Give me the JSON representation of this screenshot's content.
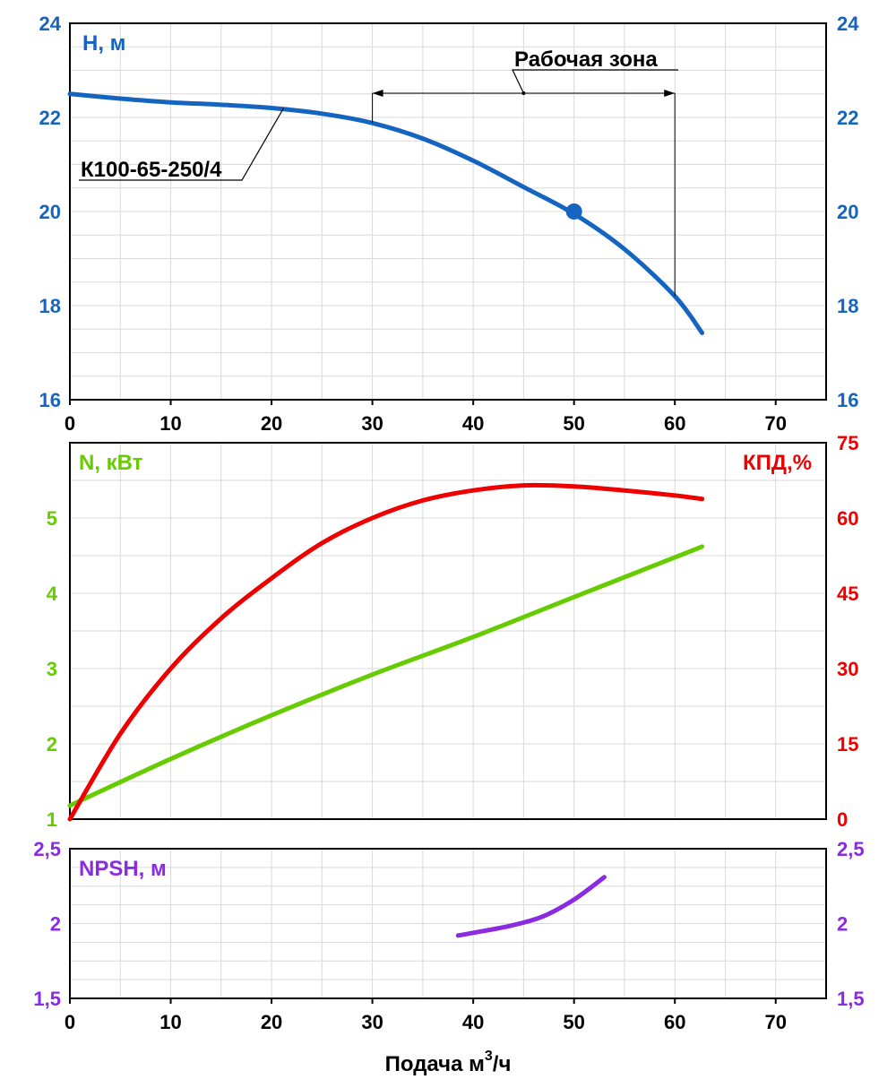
{
  "x_axis_label": "Подача м",
  "x_axis_label_sup": "3",
  "x_axis_label_tail": "/ч",
  "chart_data": [
    {
      "type": "line",
      "name": "head",
      "ylabel": "Н, м",
      "ylabel_color": "#1565C0",
      "xlim": [
        0,
        75
      ],
      "ylim": [
        16,
        24
      ],
      "x_ticks": [
        "0",
        "10",
        "20",
        "30",
        "40",
        "50",
        "60",
        "70"
      ],
      "y_ticks": [
        "16",
        "18",
        "20",
        "22",
        "24"
      ],
      "series": [
        {
          "name": "К100-65-250/4",
          "color": "#1565C0",
          "x": [
            0,
            5,
            10,
            15,
            20,
            25,
            30,
            35,
            40,
            45,
            50,
            55,
            60,
            62.7
          ],
          "y": [
            22.5,
            22.4,
            22.32,
            22.27,
            22.2,
            22.08,
            21.88,
            21.55,
            21.08,
            20.52,
            19.95,
            19.2,
            18.2,
            17.42
          ]
        }
      ],
      "duty_point": {
        "x": 50,
        "y": 20
      },
      "annotations": [
        {
          "text": "К100-65-250/4"
        },
        {
          "text": "Рабочая зона",
          "x_range": [
            30,
            60
          ]
        }
      ]
    },
    {
      "type": "line",
      "name": "power-efficiency",
      "ylabel": "N, кВт",
      "ylabel_color": "#66CC00",
      "y2label": "КПД,%",
      "y2label_color": "#EE0000",
      "xlim": [
        0,
        75
      ],
      "ylim": [
        1,
        6
      ],
      "y2lim": [
        0,
        75
      ],
      "y_ticks": [
        "1",
        "2",
        "3",
        "4",
        "5"
      ],
      "y2_ticks": [
        "0",
        "15",
        "30",
        "45",
        "60",
        "75"
      ],
      "series": [
        {
          "name": "N",
          "color": "#66CC00",
          "axis": "left",
          "x": [
            0,
            10,
            20,
            30,
            40,
            50,
            62.7
          ],
          "y": [
            1.18,
            1.8,
            2.38,
            2.92,
            3.42,
            3.95,
            4.62
          ]
        },
        {
          "name": "КПД",
          "color": "#EE0000",
          "axis": "right",
          "x": [
            0,
            5,
            10,
            15,
            20,
            25,
            30,
            35,
            40,
            45,
            50,
            55,
            60,
            62.7
          ],
          "y": [
            0,
            17,
            30,
            40,
            48,
            55,
            60,
            63.5,
            65.5,
            66.5,
            66.3,
            65.5,
            64.5,
            63.8
          ]
        }
      ]
    },
    {
      "type": "line",
      "name": "npsh",
      "ylabel": "NPSH, м",
      "ylabel_color": "#8A2BE2",
      "xlim": [
        0,
        75
      ],
      "ylim": [
        1.5,
        2.5
      ],
      "x_ticks": [
        "0",
        "10",
        "20",
        "30",
        "40",
        "50",
        "60",
        "70"
      ],
      "y_ticks": [
        "1,5",
        "2",
        "2,5"
      ],
      "series": [
        {
          "name": "NPSH",
          "color": "#8A2BE2",
          "x": [
            38.5,
            41,
            44,
            47,
            50,
            53
          ],
          "y": [
            1.92,
            1.95,
            1.99,
            2.05,
            2.16,
            2.31
          ]
        }
      ]
    }
  ]
}
